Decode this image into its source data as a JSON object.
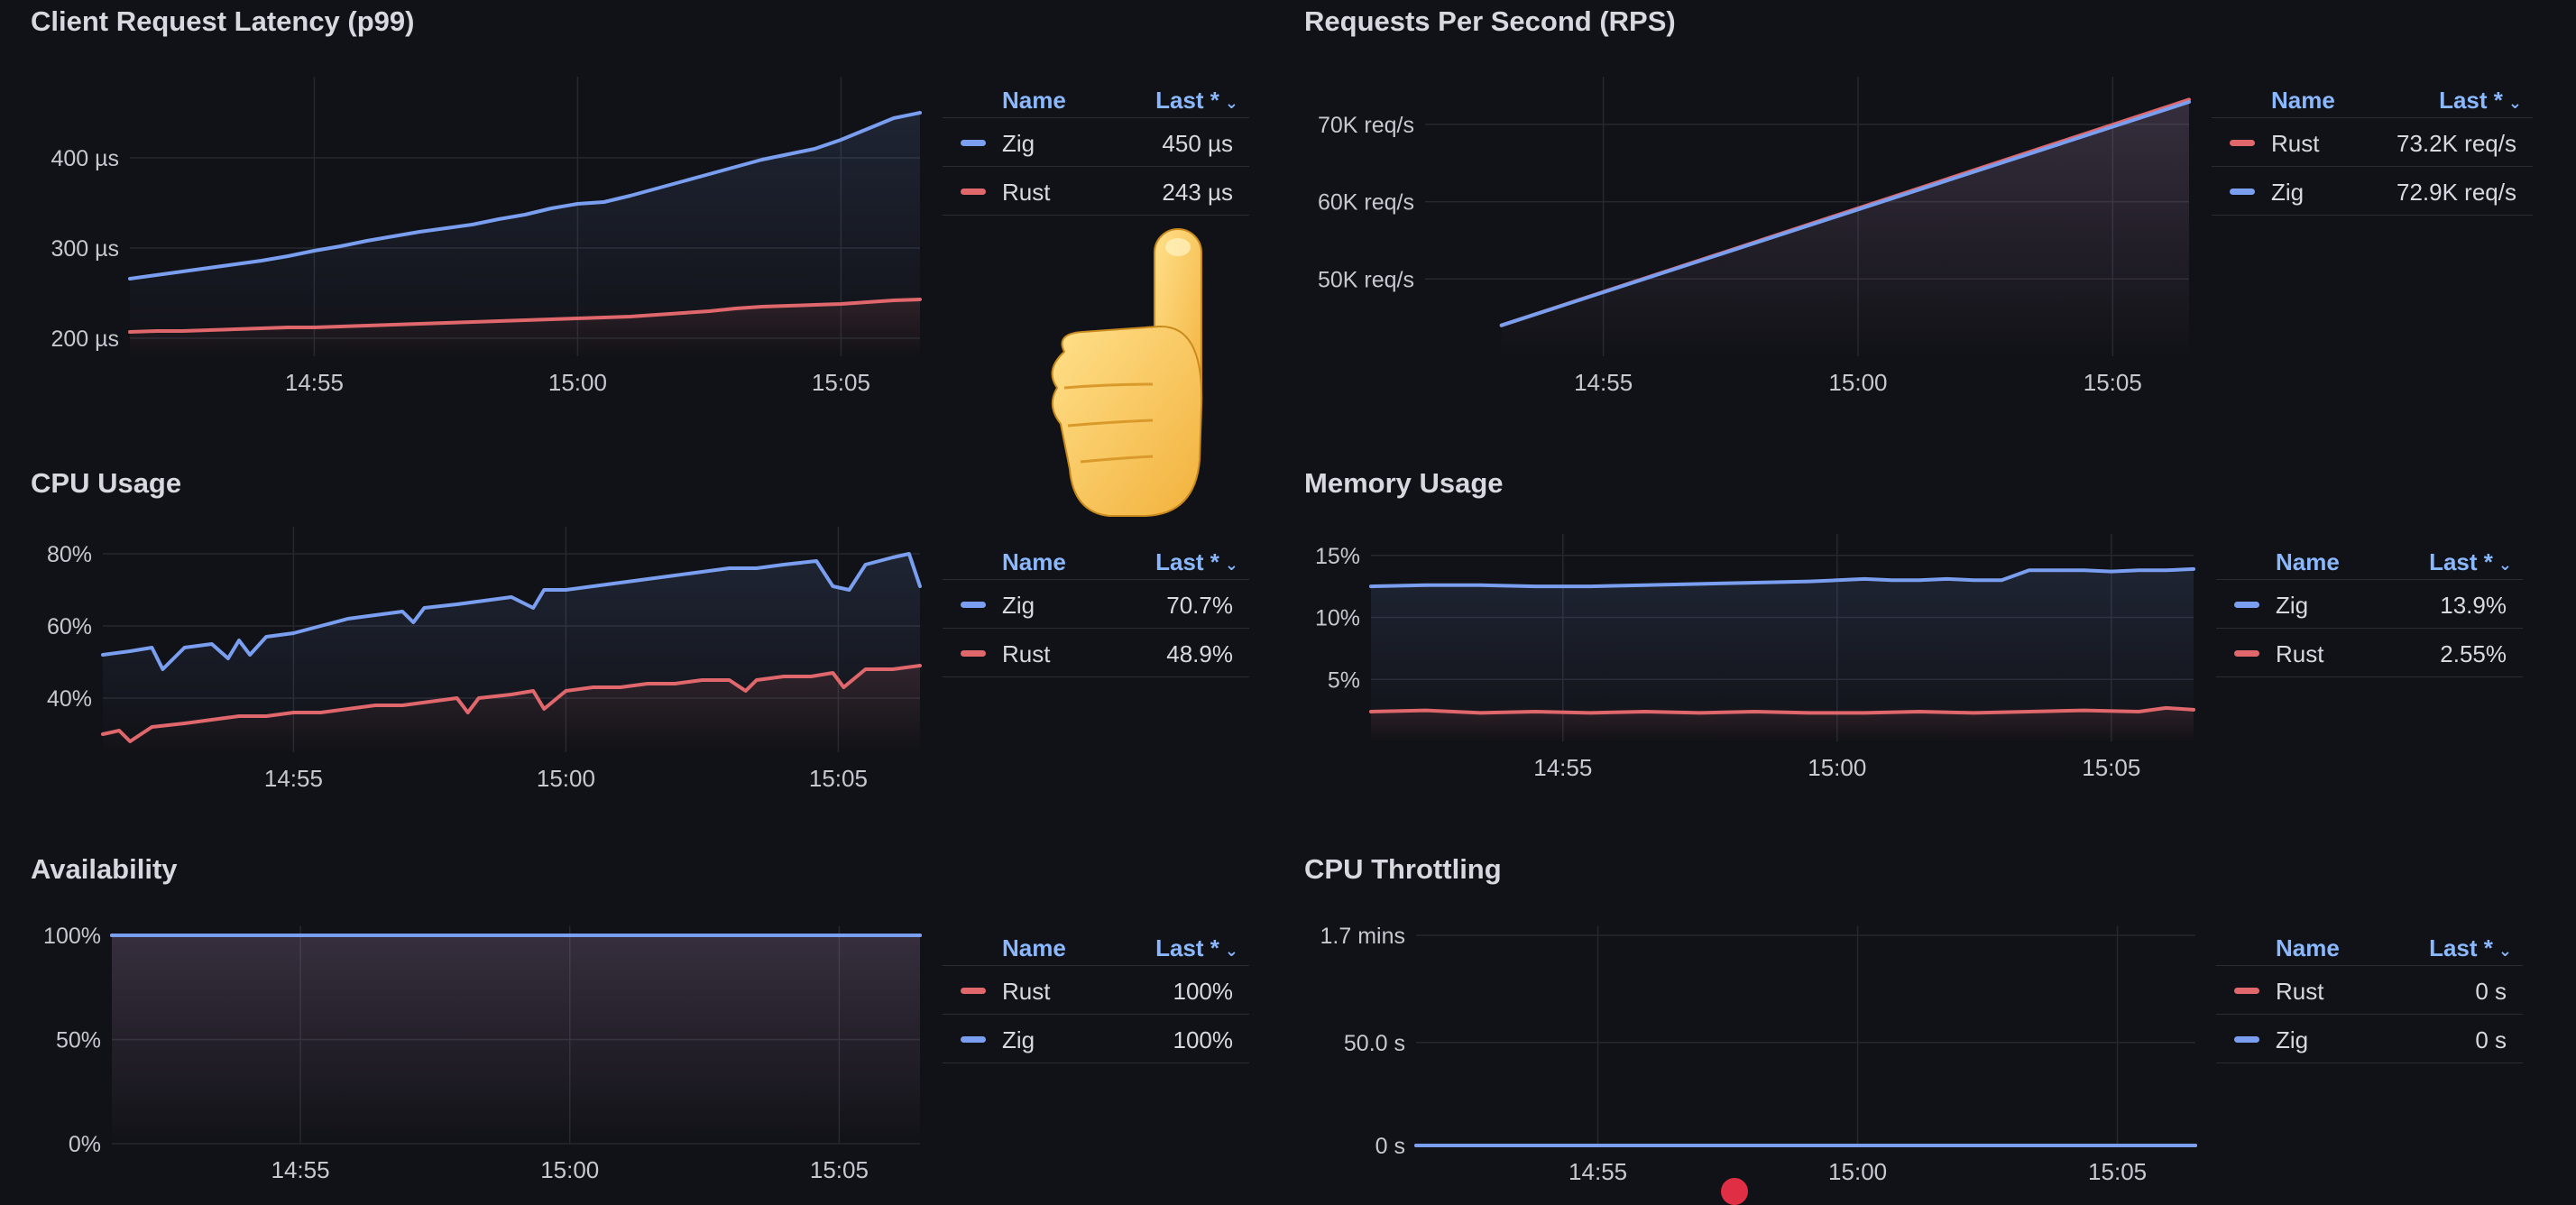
{
  "colors": {
    "zig": "#7a9ff0",
    "rust": "#e0676b",
    "grid": "#26282f",
    "axis_text": "#c7c8d0",
    "legend_head": "#8ab8ff"
  },
  "legend_header": {
    "name": "Name",
    "last": "Last *",
    "chevron": "⌄"
  },
  "panels": {
    "latency": {
      "title": "Client Request Latency (p99)",
      "legend": [
        {
          "name": "Zig",
          "value": "450 µs",
          "color": "#7a9ff0"
        },
        {
          "name": "Rust",
          "value": "243 µs",
          "color": "#e0676b"
        }
      ]
    },
    "rps": {
      "title": "Requests Per Second (RPS)",
      "legend": [
        {
          "name": "Rust",
          "value": "73.2K req/s",
          "color": "#e0676b"
        },
        {
          "name": "Zig",
          "value": "72.9K req/s",
          "color": "#7a9ff0"
        }
      ]
    },
    "cpu": {
      "title": "CPU Usage",
      "legend": [
        {
          "name": "Zig",
          "value": "70.7%",
          "color": "#7a9ff0"
        },
        {
          "name": "Rust",
          "value": "48.9%",
          "color": "#e0676b"
        }
      ]
    },
    "memory": {
      "title": "Memory Usage",
      "legend": [
        {
          "name": "Zig",
          "value": "13.9%",
          "color": "#7a9ff0"
        },
        {
          "name": "Rust",
          "value": "2.55%",
          "color": "#e0676b"
        }
      ]
    },
    "availability": {
      "title": "Availability",
      "legend": [
        {
          "name": "Rust",
          "value": "100%",
          "color": "#e0676b"
        },
        {
          "name": "Zig",
          "value": "100%",
          "color": "#7a9ff0"
        }
      ]
    },
    "throttling": {
      "title": "CPU Throttling",
      "legend": [
        {
          "name": "Rust",
          "value": "0 s",
          "color": "#e0676b"
        },
        {
          "name": "Zig",
          "value": "0 s",
          "color": "#7a9ff0"
        }
      ]
    }
  },
  "chart_data": [
    {
      "id": "latency",
      "type": "line",
      "title": "Client Request Latency (p99)",
      "x_unit": "minutes since 14:50",
      "xlim": [
        1.5,
        16.5
      ],
      "ylim": [
        180,
        480
      ],
      "x_ticks": [
        {
          "v": 5,
          "label": "14:55"
        },
        {
          "v": 10,
          "label": "15:00"
        },
        {
          "v": 15,
          "label": "15:05"
        }
      ],
      "y_ticks": [
        {
          "v": 200,
          "label": "200 µs"
        },
        {
          "v": 300,
          "label": "300 µs"
        },
        {
          "v": 400,
          "label": "400 µs"
        }
      ],
      "series": [
        {
          "name": "Zig",
          "key": "zig",
          "x": [
            1.5,
            2,
            2.5,
            3,
            3.5,
            4,
            4.5,
            5,
            5.5,
            6,
            6.5,
            7,
            7.5,
            8,
            8.5,
            9,
            9.5,
            10,
            10.5,
            11,
            11.5,
            12,
            12.5,
            13,
            13.5,
            14,
            14.5,
            15,
            15.5,
            16,
            16.5
          ],
          "y": [
            266,
            270,
            274,
            278,
            282,
            286,
            291,
            297,
            302,
            308,
            313,
            318,
            322,
            326,
            332,
            337,
            344,
            349,
            351,
            358,
            366,
            374,
            382,
            390,
            398,
            404,
            410,
            420,
            432,
            444,
            450
          ]
        },
        {
          "name": "Rust",
          "key": "rust",
          "x": [
            1.5,
            2,
            2.5,
            3,
            3.5,
            4,
            4.5,
            5,
            5.5,
            6,
            6.5,
            7,
            7.5,
            8,
            8.5,
            9,
            9.5,
            10,
            10.5,
            11,
            11.5,
            12,
            12.5,
            13,
            13.5,
            14,
            14.5,
            15,
            15.5,
            16,
            16.5
          ],
          "y": [
            207,
            208,
            208,
            209,
            210,
            211,
            212,
            212,
            213,
            214,
            215,
            216,
            217,
            218,
            219,
            220,
            221,
            222,
            223,
            224,
            226,
            228,
            230,
            233,
            235,
            236,
            237,
            238,
            240,
            242,
            243
          ]
        }
      ]
    },
    {
      "id": "rps",
      "type": "line",
      "title": "Requests Per Second (RPS)",
      "x_unit": "minutes since 14:50",
      "xlim": [
        1.5,
        16.5
      ],
      "ylim": [
        40000,
        75000
      ],
      "x_ticks": [
        {
          "v": 5,
          "label": "14:55"
        },
        {
          "v": 10,
          "label": "15:00"
        },
        {
          "v": 15,
          "label": "15:05"
        }
      ],
      "y_ticks": [
        {
          "v": 50000,
          "label": "50K req/s"
        },
        {
          "v": 60000,
          "label": "60K req/s"
        },
        {
          "v": 70000,
          "label": "70K req/s"
        }
      ],
      "series": [
        {
          "name": "Rust",
          "key": "rust",
          "x": [
            3,
            16.5
          ],
          "y": [
            44000,
            73200
          ]
        },
        {
          "name": "Zig",
          "key": "zig",
          "x": [
            3,
            16.5
          ],
          "y": [
            44000,
            72900
          ]
        }
      ]
    },
    {
      "id": "cpu",
      "type": "line",
      "title": "CPU Usage",
      "x_unit": "minutes since 14:50",
      "xlim": [
        1.5,
        16.5
      ],
      "ylim": [
        25,
        85
      ],
      "x_ticks": [
        {
          "v": 5,
          "label": "14:55"
        },
        {
          "v": 10,
          "label": "15:00"
        },
        {
          "v": 15,
          "label": "15:05"
        }
      ],
      "y_ticks": [
        {
          "v": 40,
          "label": "40%"
        },
        {
          "v": 60,
          "label": "60%"
        },
        {
          "v": 80,
          "label": "80%"
        }
      ],
      "series": [
        {
          "name": "Zig",
          "key": "zig",
          "x": [
            1.5,
            2,
            2.4,
            2.6,
            3,
            3.5,
            3.8,
            4,
            4.2,
            4.5,
            5,
            5.5,
            6,
            6.5,
            7,
            7.2,
            7.4,
            8,
            8.5,
            9,
            9.4,
            9.6,
            10,
            10.5,
            11,
            11.5,
            12,
            12.5,
            13,
            13.5,
            14,
            14.6,
            14.9,
            15.2,
            15.5,
            16,
            16.3,
            16.5
          ],
          "y": [
            52,
            53,
            54,
            48,
            54,
            55,
            51,
            56,
            52,
            57,
            58,
            60,
            62,
            63,
            64,
            61,
            65,
            66,
            67,
            68,
            65,
            70,
            70,
            71,
            72,
            73,
            74,
            75,
            76,
            76,
            77,
            78,
            71,
            70,
            77,
            79,
            80,
            71
          ]
        },
        {
          "name": "Rust",
          "key": "rust",
          "x": [
            1.5,
            1.8,
            2,
            2.4,
            3,
            3.5,
            4,
            4.5,
            5,
            5.5,
            6,
            6.5,
            7,
            7.5,
            8,
            8.2,
            8.4,
            9,
            9.4,
            9.6,
            10,
            10.5,
            11,
            11.5,
            12,
            12.5,
            13,
            13.3,
            13.5,
            14,
            14.5,
            14.9,
            15.1,
            15.5,
            16,
            16.5
          ],
          "y": [
            30,
            31,
            28,
            32,
            33,
            34,
            35,
            35,
            36,
            36,
            37,
            38,
            38,
            39,
            40,
            36,
            40,
            41,
            42,
            37,
            42,
            43,
            43,
            44,
            44,
            45,
            45,
            42,
            45,
            46,
            46,
            47,
            43,
            48,
            48,
            49
          ]
        }
      ]
    },
    {
      "id": "memory",
      "type": "line",
      "title": "Memory Usage",
      "x_unit": "minutes since 14:50",
      "xlim": [
        1.5,
        16.5
      ],
      "ylim": [
        0,
        16
      ],
      "x_ticks": [
        {
          "v": 5,
          "label": "14:55"
        },
        {
          "v": 10,
          "label": "15:00"
        },
        {
          "v": 15,
          "label": "15:05"
        }
      ],
      "y_ticks": [
        {
          "v": 5,
          "label": "5%"
        },
        {
          "v": 10,
          "label": "10%"
        },
        {
          "v": 15,
          "label": "15%"
        }
      ],
      "series": [
        {
          "name": "Zig",
          "key": "zig",
          "x": [
            1.5,
            2.5,
            3.5,
            4.5,
            5.5,
            6.5,
            7.5,
            8.5,
            9.5,
            10,
            10.5,
            11,
            11.5,
            12,
            12.5,
            13,
            13.5,
            14,
            14.5,
            15,
            15.5,
            16,
            16.5
          ],
          "y": [
            12.5,
            12.6,
            12.6,
            12.5,
            12.5,
            12.6,
            12.7,
            12.8,
            12.9,
            13.0,
            13.1,
            13.0,
            13.0,
            13.1,
            13.0,
            13.0,
            13.8,
            13.8,
            13.8,
            13.7,
            13.8,
            13.8,
            13.9
          ]
        },
        {
          "name": "Rust",
          "key": "rust",
          "x": [
            1.5,
            2.5,
            3.5,
            4.5,
            5.5,
            6.5,
            7.5,
            8.5,
            9.5,
            10.5,
            11.5,
            12.5,
            13.5,
            14.5,
            15.5,
            16,
            16.5
          ],
          "y": [
            2.4,
            2.5,
            2.3,
            2.4,
            2.3,
            2.4,
            2.3,
            2.4,
            2.3,
            2.3,
            2.4,
            2.3,
            2.4,
            2.5,
            2.4,
            2.7,
            2.55
          ]
        }
      ]
    },
    {
      "id": "availability",
      "type": "line",
      "title": "Availability",
      "x_unit": "minutes since 14:50",
      "xlim": [
        1.5,
        16.5
      ],
      "ylim": [
        0,
        100
      ],
      "x_ticks": [
        {
          "v": 5,
          "label": "14:55"
        },
        {
          "v": 10,
          "label": "15:00"
        },
        {
          "v": 15,
          "label": "15:05"
        }
      ],
      "y_ticks": [
        {
          "v": 0,
          "label": "0%"
        },
        {
          "v": 50,
          "label": "50%"
        },
        {
          "v": 100,
          "label": "100%"
        }
      ],
      "series": [
        {
          "name": "Rust",
          "key": "rust",
          "x": [
            1.5,
            16.5
          ],
          "y": [
            100,
            100
          ]
        },
        {
          "name": "Zig",
          "key": "zig",
          "x": [
            1.5,
            16.5
          ],
          "y": [
            100,
            100
          ]
        }
      ]
    },
    {
      "id": "throttling",
      "type": "line",
      "title": "CPU Throttling",
      "x_unit": "minutes since 14:50",
      "xlim": [
        1.5,
        16.5
      ],
      "ylim": [
        0,
        102
      ],
      "x_ticks": [
        {
          "v": 5,
          "label": "14:55"
        },
        {
          "v": 10,
          "label": "15:00"
        },
        {
          "v": 15,
          "label": "15:05"
        }
      ],
      "y_ticks": [
        {
          "v": 0,
          "label": "0 s"
        },
        {
          "v": 50,
          "label": "50.0 s"
        },
        {
          "v": 102,
          "label": "1.7 mins"
        }
      ],
      "series": [
        {
          "name": "Rust",
          "key": "rust",
          "x": [
            1.5,
            16.5
          ],
          "y": [
            0,
            0
          ]
        },
        {
          "name": "Zig",
          "key": "zig",
          "x": [
            1.5,
            16.5
          ],
          "y": [
            0,
            0
          ]
        }
      ]
    }
  ]
}
